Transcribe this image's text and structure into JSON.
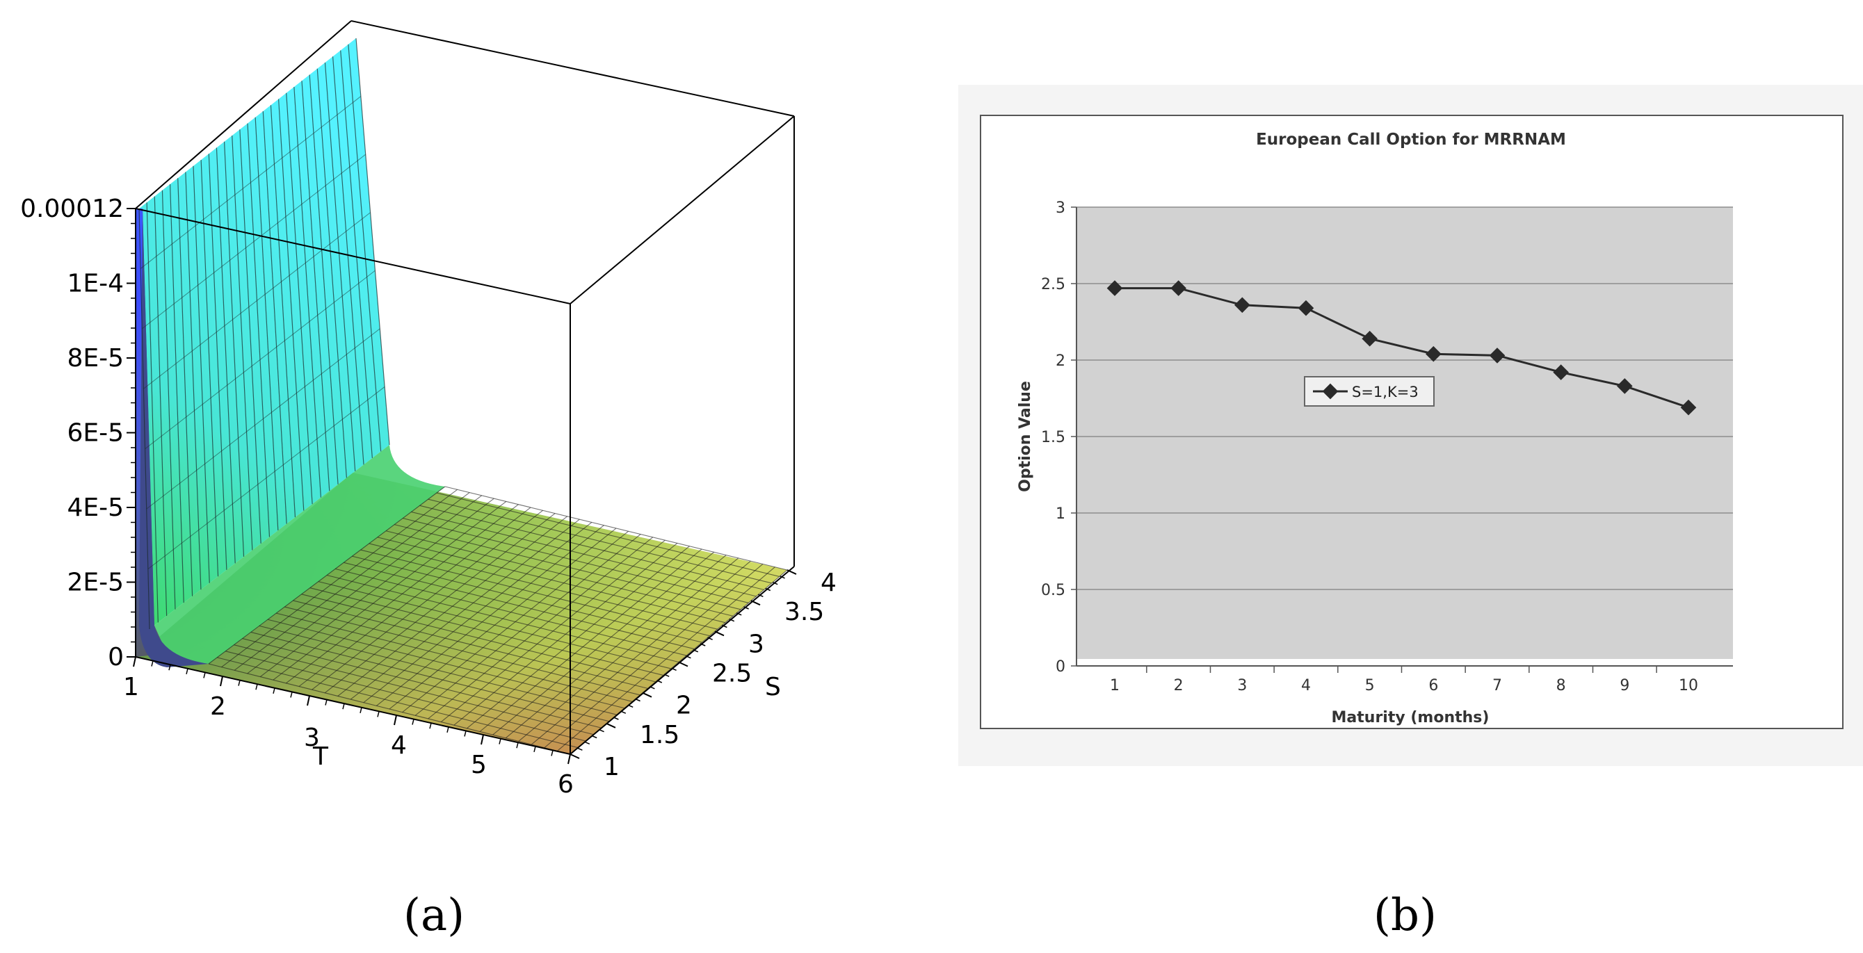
{
  "panels": [
    {
      "label": "(a)"
    },
    {
      "label": "(b)"
    }
  ],
  "chart_data": [
    {
      "type": "surface",
      "title": "",
      "xlabel": "T",
      "ylabel": "S",
      "zlabel": "",
      "xlim": [
        1,
        6
      ],
      "ylim": [
        1,
        4
      ],
      "zlim": [
        0,
        0.00012
      ],
      "x_ticks": [
        "1",
        "2",
        "3",
        "4",
        "5",
        "6"
      ],
      "y_ticks": [
        "1",
        "1.5",
        "2",
        "2.5",
        "3",
        "3.5",
        "4"
      ],
      "z_ticks": [
        "0",
        "2E-5",
        "4E-5",
        "6E-5",
        "8E-5",
        "1E-4",
        "0.00012"
      ],
      "surface_peak": 0.00012,
      "colors": {
        "blue": "#3b4cff",
        "cyan": "#49f0ff",
        "green": "#54f24a",
        "yellow": "#f4f06a",
        "red": "#f0505a"
      }
    },
    {
      "type": "line",
      "title": "European Call Option for MRRNAM",
      "xlabel": "Maturity (months)",
      "ylabel": "Option Value",
      "categories": [
        "1",
        "2",
        "3",
        "4",
        "5",
        "6",
        "7",
        "8",
        "9",
        "10"
      ],
      "ylim": [
        0,
        3
      ],
      "y_ticks": [
        "0",
        "0.5",
        "1",
        "1.5",
        "2",
        "2.5",
        "3"
      ],
      "grid": true,
      "legend_position": "center",
      "series": [
        {
          "name": "S=1,K=3",
          "values": [
            2.47,
            2.47,
            2.36,
            2.34,
            2.14,
            2.04,
            2.03,
            1.92,
            1.83,
            1.69
          ]
        }
      ],
      "colors": {
        "plot_bg": "#d2d2d2",
        "line": "#2a2a2a",
        "frame_bg": "#f4f4f4"
      }
    }
  ]
}
